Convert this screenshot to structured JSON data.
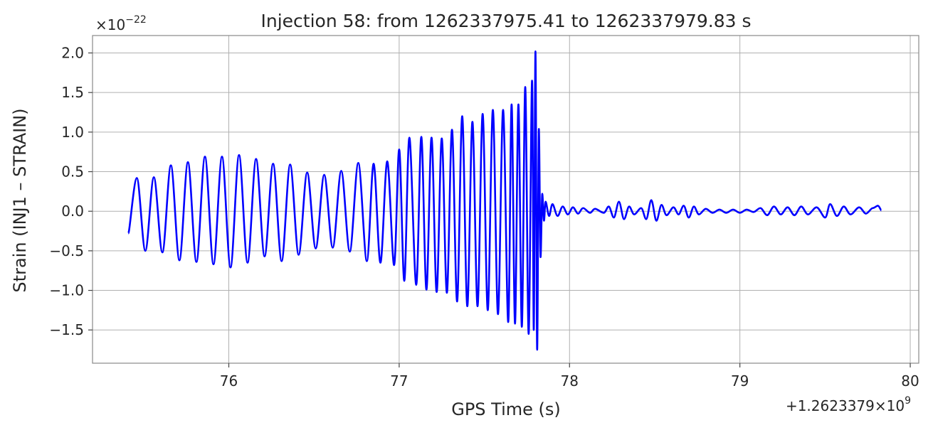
{
  "chart_data": {
    "type": "line",
    "title": "Injection 58: from 1262337975.41 to 1262337979.83 s",
    "xlabel": "GPS Time (s)",
    "ylabel": "Strain (INJ1 – STRAIN)",
    "x_offset_label": "+1.2623379×10",
    "x_offset_exponent": "9",
    "y_scale_label": "×10",
    "y_scale_exponent": "−22",
    "xlim": [
      75.2,
      80.05
    ],
    "ylim": [
      -1.92,
      2.22
    ],
    "x_ticks": [
      76,
      77,
      78,
      79,
      80
    ],
    "x_tick_labels": [
      "76",
      "77",
      "78",
      "79",
      "80"
    ],
    "y_ticks": [
      -1.5,
      -1.0,
      -0.5,
      0.0,
      0.5,
      1.0,
      1.5,
      2.0
    ],
    "y_tick_labels": [
      "−1.5",
      "−1.0",
      "−0.5",
      "0.0",
      "0.5",
      "1.0",
      "1.5",
      "2.0"
    ],
    "grid": true,
    "series": [
      {
        "color": "#0000ff",
        "points": [
          [
            75.41,
            -0.28
          ],
          [
            75.46,
            0.42
          ],
          [
            75.51,
            -0.5
          ],
          [
            75.56,
            0.43
          ],
          [
            75.61,
            -0.52
          ],
          [
            75.66,
            0.58
          ],
          [
            75.71,
            -0.62
          ],
          [
            75.76,
            0.62
          ],
          [
            75.81,
            -0.64
          ],
          [
            75.86,
            0.69
          ],
          [
            75.91,
            -0.67
          ],
          [
            75.96,
            0.69
          ],
          [
            76.01,
            -0.71
          ],
          [
            76.06,
            0.71
          ],
          [
            76.11,
            -0.65
          ],
          [
            76.16,
            0.66
          ],
          [
            76.21,
            -0.57
          ],
          [
            76.26,
            0.6
          ],
          [
            76.31,
            -0.63
          ],
          [
            76.36,
            0.59
          ],
          [
            76.41,
            -0.55
          ],
          [
            76.46,
            0.49
          ],
          [
            76.51,
            -0.47
          ],
          [
            76.56,
            0.46
          ],
          [
            76.61,
            -0.46
          ],
          [
            76.66,
            0.51
          ],
          [
            76.71,
            -0.51
          ],
          [
            76.76,
            0.61
          ],
          [
            76.81,
            -0.63
          ],
          [
            76.85,
            0.6
          ],
          [
            76.89,
            -0.65
          ],
          [
            76.93,
            0.63
          ],
          [
            76.97,
            -0.68
          ],
          [
            77.0,
            0.78
          ],
          [
            77.03,
            -0.88
          ],
          [
            77.06,
            0.93
          ],
          [
            77.1,
            -0.93
          ],
          [
            77.13,
            0.94
          ],
          [
            77.16,
            -0.99
          ],
          [
            77.19,
            0.93
          ],
          [
            77.22,
            -1.02
          ],
          [
            77.25,
            0.92
          ],
          [
            77.28,
            -1.03
          ],
          [
            77.31,
            1.03
          ],
          [
            77.34,
            -1.14
          ],
          [
            77.37,
            1.2
          ],
          [
            77.4,
            -1.2
          ],
          [
            77.43,
            1.13
          ],
          [
            77.46,
            -1.2
          ],
          [
            77.49,
            1.23
          ],
          [
            77.52,
            -1.25
          ],
          [
            77.55,
            1.28
          ],
          [
            77.58,
            -1.3
          ],
          [
            77.61,
            1.28
          ],
          [
            77.64,
            -1.4
          ],
          [
            77.66,
            1.35
          ],
          [
            77.68,
            -1.42
          ],
          [
            77.7,
            1.35
          ],
          [
            77.72,
            -1.46
          ],
          [
            77.74,
            1.57
          ],
          [
            77.76,
            -1.55
          ],
          [
            77.78,
            1.65
          ],
          [
            77.79,
            -1.5
          ],
          [
            77.8,
            2.02
          ],
          [
            77.81,
            -1.75
          ],
          [
            77.82,
            1.04
          ],
          [
            77.83,
            -0.58
          ],
          [
            77.84,
            0.22
          ],
          [
            77.85,
            -0.12
          ],
          [
            77.86,
            0.12
          ],
          [
            77.88,
            -0.06
          ],
          [
            77.9,
            0.09
          ],
          [
            77.93,
            -0.06
          ],
          [
            77.96,
            0.06
          ],
          [
            77.99,
            -0.04
          ],
          [
            78.02,
            0.05
          ],
          [
            78.05,
            -0.03
          ],
          [
            78.08,
            0.04
          ],
          [
            78.12,
            -0.02
          ],
          [
            78.15,
            0.03
          ],
          [
            78.2,
            -0.02
          ],
          [
            78.23,
            0.06
          ],
          [
            78.26,
            -0.08
          ],
          [
            78.29,
            0.12
          ],
          [
            78.32,
            -0.1
          ],
          [
            78.35,
            0.06
          ],
          [
            78.38,
            -0.04
          ],
          [
            78.42,
            0.04
          ],
          [
            78.45,
            -0.1
          ],
          [
            78.48,
            0.14
          ],
          [
            78.51,
            -0.12
          ],
          [
            78.54,
            0.08
          ],
          [
            78.57,
            -0.05
          ],
          [
            78.61,
            0.05
          ],
          [
            78.64,
            -0.04
          ],
          [
            78.67,
            0.07
          ],
          [
            78.7,
            -0.08
          ],
          [
            78.73,
            0.06
          ],
          [
            78.76,
            -0.04
          ],
          [
            78.8,
            0.03
          ],
          [
            78.84,
            -0.02
          ],
          [
            78.88,
            0.02
          ],
          [
            78.92,
            -0.02
          ],
          [
            78.96,
            0.02
          ],
          [
            79.0,
            -0.02
          ],
          [
            79.04,
            0.02
          ],
          [
            79.08,
            -0.01
          ],
          [
            79.12,
            0.04
          ],
          [
            79.16,
            -0.05
          ],
          [
            79.2,
            0.06
          ],
          [
            79.24,
            -0.04
          ],
          [
            79.28,
            0.05
          ],
          [
            79.32,
            -0.05
          ],
          [
            79.36,
            0.06
          ],
          [
            79.4,
            -0.04
          ],
          [
            79.45,
            0.05
          ],
          [
            79.5,
            -0.08
          ],
          [
            79.53,
            0.09
          ],
          [
            79.57,
            -0.06
          ],
          [
            79.61,
            0.06
          ],
          [
            79.65,
            -0.04
          ],
          [
            79.7,
            0.05
          ],
          [
            79.74,
            -0.03
          ],
          [
            79.78,
            0.04
          ],
          [
            79.81,
            0.07
          ],
          [
            79.83,
            0.01
          ]
        ]
      }
    ]
  }
}
